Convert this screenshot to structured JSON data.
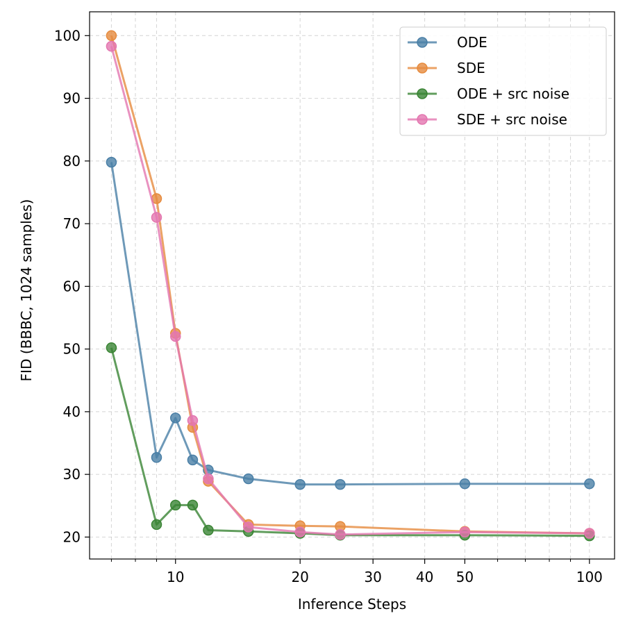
{
  "chart_data": {
    "type": "line",
    "title": "",
    "xlabel": "Inference Steps",
    "ylabel": "FID (BBBC, 1024 samples)",
    "xscale": "log",
    "xlim": [
      6.2,
      115
    ],
    "ylim": [
      16.5,
      103.8
    ],
    "grid": true,
    "legend_position": "top-right",
    "x": [
      7,
      9,
      10,
      11,
      12,
      15,
      20,
      25,
      50,
      100
    ],
    "x_major_ticks": [
      10,
      20,
      30,
      40,
      50,
      100
    ],
    "x_major_tick_labels": [
      "10",
      "20",
      "30",
      "40",
      "50",
      "100"
    ],
    "x_minor_ticks": [
      7,
      8,
      9,
      60,
      70,
      80,
      90
    ],
    "y_ticks": [
      20,
      30,
      40,
      50,
      60,
      70,
      80,
      90,
      100
    ],
    "y_tick_labels": [
      "20",
      "30",
      "40",
      "50",
      "60",
      "70",
      "80",
      "90",
      "100"
    ],
    "series": [
      {
        "name": "ODE",
        "color": "#4a7fa6",
        "values": [
          79.8,
          32.7,
          39.0,
          32.3,
          30.7,
          29.3,
          28.4,
          28.4,
          28.5,
          28.5
        ]
      },
      {
        "name": "SDE",
        "color": "#e68b3e",
        "values": [
          100.0,
          74.0,
          52.5,
          37.5,
          28.9,
          22.0,
          21.8,
          21.7,
          20.9,
          20.6
        ]
      },
      {
        "name": "ODE + src noise",
        "color": "#3a8434",
        "values": [
          50.2,
          22.0,
          25.1,
          25.1,
          21.1,
          20.9,
          20.6,
          20.3,
          20.3,
          20.2
        ]
      },
      {
        "name": "SDE + src noise",
        "color": "#e377b0",
        "values": [
          98.3,
          71.0,
          52.0,
          38.6,
          29.3,
          21.6,
          20.8,
          20.4,
          20.8,
          20.6
        ]
      }
    ]
  }
}
